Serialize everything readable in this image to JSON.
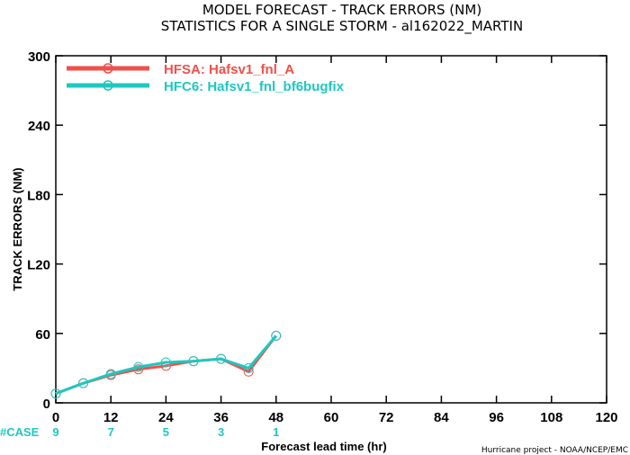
{
  "chart_data": {
    "type": "line",
    "title": "MODEL FORECAST - TRACK ERRORS (NM)",
    "subtitle": "STATISTICS FOR A SINGLE STORM - al162022_MARTIN",
    "xlabel": "Forecast lead time (hr)",
    "ylabel": "TRACK ERRORS (NM)",
    "xlim": [
      0,
      120
    ],
    "ylim": [
      0,
      300
    ],
    "x_ticks": [
      0,
      12,
      24,
      36,
      48,
      60,
      72,
      84,
      96,
      108,
      120
    ],
    "y_ticks": [
      0,
      60,
      120,
      180,
      240,
      300
    ],
    "y_tick_labels": [
      "0",
      "60",
      "L20",
      "L80",
      "240",
      "300"
    ],
    "grid": false,
    "legend_position": "top-left",
    "series": [
      {
        "name": "HFSA: Hafsv1_fnl_A",
        "color": "#f0504a",
        "x": [
          0,
          6,
          12,
          18,
          24,
          30,
          36,
          42,
          48
        ],
        "y": [
          8,
          17,
          24,
          29,
          32,
          36,
          38,
          27,
          58
        ]
      },
      {
        "name": "HFC6: Hafsv1_fnl_bf6bugfix",
        "color": "#1ec8c0",
        "x": [
          0,
          6,
          12,
          18,
          24,
          30,
          36,
          42,
          48
        ],
        "y": [
          8,
          17,
          25,
          31,
          35,
          36,
          38,
          30,
          58
        ]
      }
    ],
    "case_label": "#CASE",
    "case_x": [
      0,
      12,
      24,
      36,
      48
    ],
    "case_counts": [
      "9",
      "7",
      "5",
      "3",
      "1"
    ],
    "case_color": "#1ec8c0",
    "credit": "Hurricane project - NOAA/NCEP/EMC"
  }
}
